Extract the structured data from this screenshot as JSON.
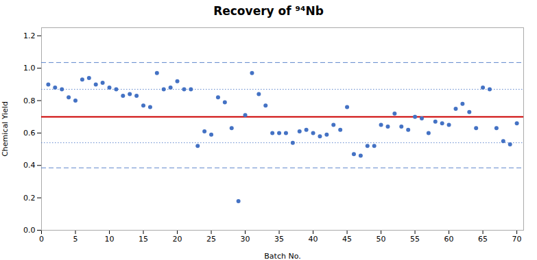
{
  "chart_data": {
    "type": "scatter",
    "title": "Recovery of ⁹⁴Nb",
    "xlabel": "Batch No.",
    "ylabel": "Chemical Yield",
    "xlim": [
      0,
      71
    ],
    "ylim": [
      0.0,
      1.25
    ],
    "xticks": [
      0,
      5,
      10,
      15,
      20,
      25,
      30,
      35,
      40,
      45,
      50,
      55,
      60,
      65,
      70
    ],
    "yticks": [
      {
        "value": 0.0,
        "label": "0.0"
      },
      0.2,
      0.4,
      0.6,
      0.8,
      {
        "value": 1.0,
        "label": "1.0"
      },
      1.2
    ],
    "grid": false,
    "color": "#4472c4",
    "marker": "circle",
    "x": [
      1,
      2,
      3,
      4,
      5,
      6,
      7,
      8,
      9,
      10,
      11,
      12,
      13,
      14,
      15,
      16,
      17,
      18,
      19,
      20,
      21,
      22,
      23,
      24,
      25,
      26,
      27,
      28,
      29,
      30,
      31,
      32,
      33,
      34,
      35,
      36,
      37,
      38,
      39,
      40,
      41,
      42,
      43,
      44,
      45,
      46,
      47,
      48,
      49,
      50,
      51,
      52,
      53,
      54,
      55,
      56,
      57,
      58,
      59,
      60,
      61,
      62,
      63,
      64,
      65,
      66,
      67,
      68,
      69,
      70
    ],
    "values": [
      0.9,
      0.88,
      0.87,
      0.82,
      0.8,
      0.93,
      0.94,
      0.9,
      0.91,
      0.88,
      0.87,
      0.83,
      0.84,
      0.83,
      0.77,
      0.76,
      0.97,
      0.87,
      0.88,
      0.92,
      0.87,
      0.87,
      0.52,
      0.61,
      0.59,
      0.82,
      0.79,
      0.63,
      0.18,
      0.71,
      0.97,
      0.84,
      0.77,
      0.6,
      0.6,
      0.6,
      0.54,
      0.61,
      0.62,
      0.6,
      0.58,
      0.59,
      0.65,
      0.62,
      0.76,
      0.47,
      0.46,
      0.52,
      0.52,
      0.65,
      0.64,
      0.72,
      0.64,
      0.62,
      0.7,
      0.69,
      0.6,
      0.67,
      0.66,
      0.65,
      0.75,
      0.78,
      0.73,
      0.63,
      0.88,
      0.87,
      0.63,
      0.55,
      0.53,
      0.66
    ],
    "hlines": [
      {
        "y": 1.035,
        "color": "#4472c4",
        "line_style": "dashed"
      },
      {
        "y": 0.385,
        "color": "#4472c4",
        "line_style": "dashed"
      },
      {
        "y": 0.87,
        "color": "#4472c4",
        "line_style": "dotted"
      },
      {
        "y": 0.54,
        "color": "#4472c4",
        "line_style": "dotted"
      },
      {
        "y": 0.7,
        "color": "#cc0000",
        "line_style": "solid"
      }
    ]
  }
}
